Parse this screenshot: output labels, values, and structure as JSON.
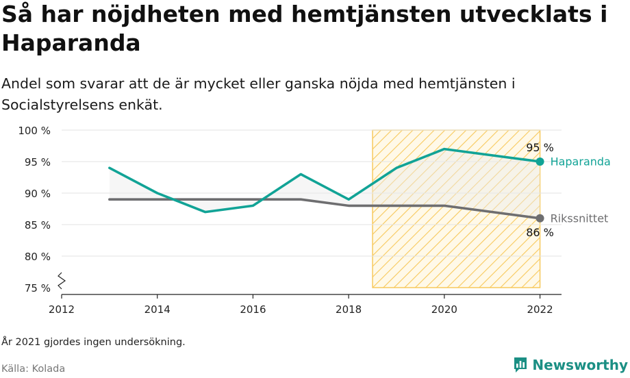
{
  "title": "Så har nöjdheten med hemtjänsten utvecklats i Haparanda",
  "subtitle": "Andel som svarar att de är mycket eller ganska nöjda med hemtjänsten i Socialstyrelsens enkät.",
  "note": "År 2021 gjordes ingen undersökning.",
  "source": "Källa: Kolada",
  "brand": "Newsworthy",
  "colors": {
    "haparanda": "#11a396",
    "riket": "#6e6e70",
    "highlight": "#f7c95c",
    "grid": "#e3e3e3"
  },
  "chart_data": {
    "type": "line",
    "title": "Så har nöjdheten med hemtjänsten utvecklats i Haparanda",
    "xlabel": "",
    "ylabel": "",
    "xlim": [
      2012,
      2022.45
    ],
    "ylim": [
      75,
      100
    ],
    "x_ticks": [
      "2012",
      "2014",
      "2016",
      "2018",
      "2020",
      "2022"
    ],
    "y_ticks": [
      "75 %",
      "80 %",
      "85 %",
      "90 %",
      "95 %",
      "100 %"
    ],
    "y_break": true,
    "highlight_band": [
      2018.5,
      2022
    ],
    "series": [
      {
        "name": "Haparanda",
        "color": "#11a396",
        "x": [
          2013,
          2014,
          2015,
          2016,
          2017,
          2018,
          2019,
          2020,
          2022
        ],
        "values": [
          94,
          90,
          87,
          88,
          93,
          89,
          94,
          97,
          95
        ],
        "end_label": "95 %"
      },
      {
        "name": "Rikssnittet",
        "color": "#6e6e70",
        "x": [
          2013,
          2014,
          2015,
          2016,
          2017,
          2018,
          2019,
          2020,
          2022
        ],
        "values": [
          89,
          89,
          89,
          89,
          89,
          88,
          88,
          88,
          86
        ],
        "end_label": "86 %"
      }
    ]
  }
}
